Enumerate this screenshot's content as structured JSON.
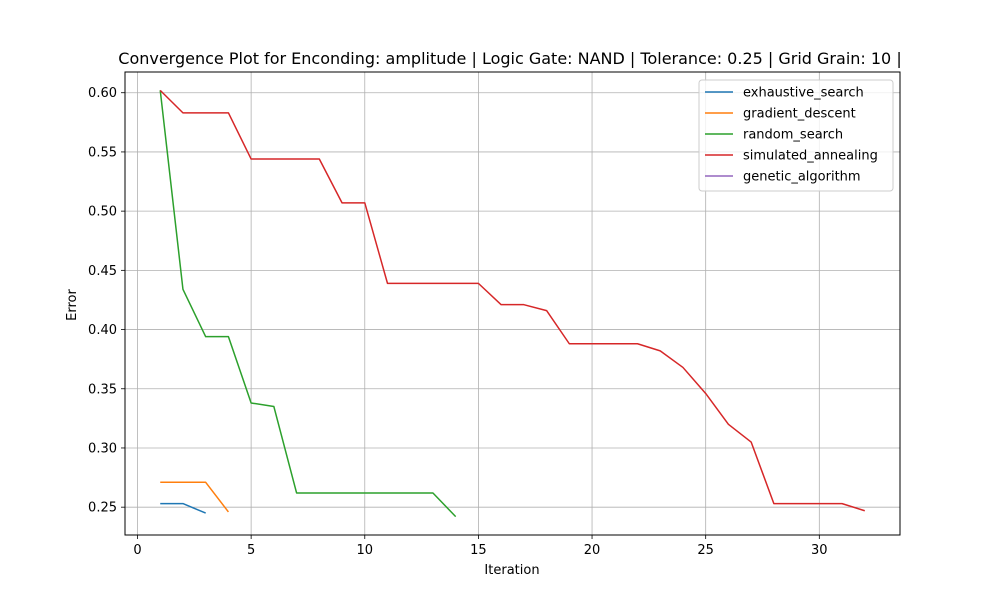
{
  "chart_data": {
    "type": "line",
    "title": "Convergence Plot for Enconding: amplitude | Logic Gate: NAND | Tolerance: 0.25 | Grid Grain: 10 |",
    "xlabel": "Iteration",
    "ylabel": "Error",
    "xlim": [
      -0.55,
      33.55
    ],
    "ylim": [
      0.2265,
      0.6175
    ],
    "xticks": [
      0,
      5,
      10,
      15,
      20,
      25,
      30
    ],
    "yticks": [
      0.25,
      0.3,
      0.35,
      0.4,
      0.45,
      0.5,
      0.55,
      0.6
    ],
    "ytick_labels": [
      "0.25",
      "0.30",
      "0.35",
      "0.40",
      "0.45",
      "0.50",
      "0.55",
      "0.60"
    ],
    "grid": true,
    "legend_position": "top-right",
    "series": [
      {
        "name": "exhaustive_search",
        "color": "#1f77b4",
        "x": [
          1,
          2,
          3
        ],
        "y": [
          0.253,
          0.253,
          0.245
        ]
      },
      {
        "name": "gradient_descent",
        "color": "#ff7f0e",
        "x": [
          1,
          2,
          3,
          4
        ],
        "y": [
          0.271,
          0.271,
          0.271,
          0.246
        ]
      },
      {
        "name": "random_search",
        "color": "#2ca02c",
        "x": [
          1,
          2,
          3,
          4,
          5,
          6,
          7,
          8,
          9,
          10,
          11,
          12,
          13,
          14
        ],
        "y": [
          0.602,
          0.434,
          0.394,
          0.394,
          0.338,
          0.335,
          0.262,
          0.262,
          0.262,
          0.262,
          0.262,
          0.262,
          0.262,
          0.242
        ]
      },
      {
        "name": "simulated_annealing",
        "color": "#d62728",
        "x": [
          1,
          2,
          3,
          4,
          5,
          6,
          7,
          8,
          9,
          10,
          11,
          12,
          13,
          14,
          15,
          16,
          17,
          18,
          19,
          20,
          21,
          22,
          23,
          24,
          25,
          26,
          27,
          28,
          29,
          30,
          31,
          32
        ],
        "y": [
          0.602,
          0.583,
          0.583,
          0.583,
          0.544,
          0.544,
          0.544,
          0.544,
          0.507,
          0.507,
          0.439,
          0.439,
          0.439,
          0.439,
          0.439,
          0.421,
          0.421,
          0.416,
          0.388,
          0.388,
          0.388,
          0.388,
          0.382,
          0.368,
          0.346,
          0.32,
          0.305,
          0.253,
          0.253,
          0.253,
          0.253,
          0.247
        ]
      },
      {
        "name": "genetic_algorithm",
        "color": "#9467bd",
        "x": [],
        "y": []
      }
    ]
  }
}
